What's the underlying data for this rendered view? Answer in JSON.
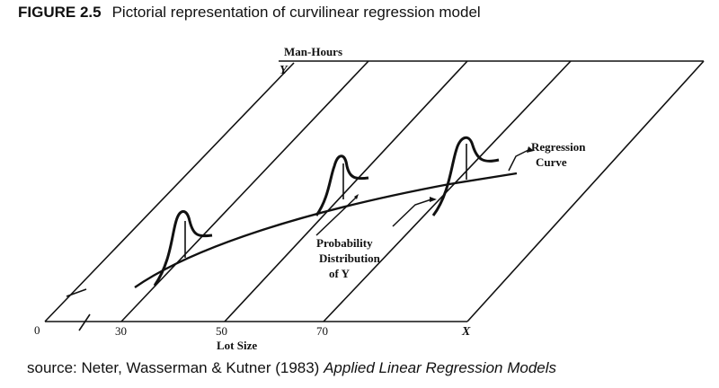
{
  "figure": {
    "number": "FIGURE 2.5",
    "caption": "Pictorial representation of curvilinear regression model"
  },
  "diagram": {
    "y_axis_title": "Man-Hours",
    "y_axis_letter": "Y",
    "x_axis_letter": "X",
    "x_axis_title": "Lot Size",
    "origin_label": "0",
    "x_ticks": [
      "30",
      "50",
      "70"
    ],
    "regression_label": [
      "Regression",
      "Curve"
    ],
    "distribution_label": [
      "Probability",
      "Distribution",
      "of Y"
    ]
  },
  "source": {
    "prefix": "source:  Neter, Wasserman & Kutner (1983) ",
    "title": "Applied Linear Regression Models"
  }
}
